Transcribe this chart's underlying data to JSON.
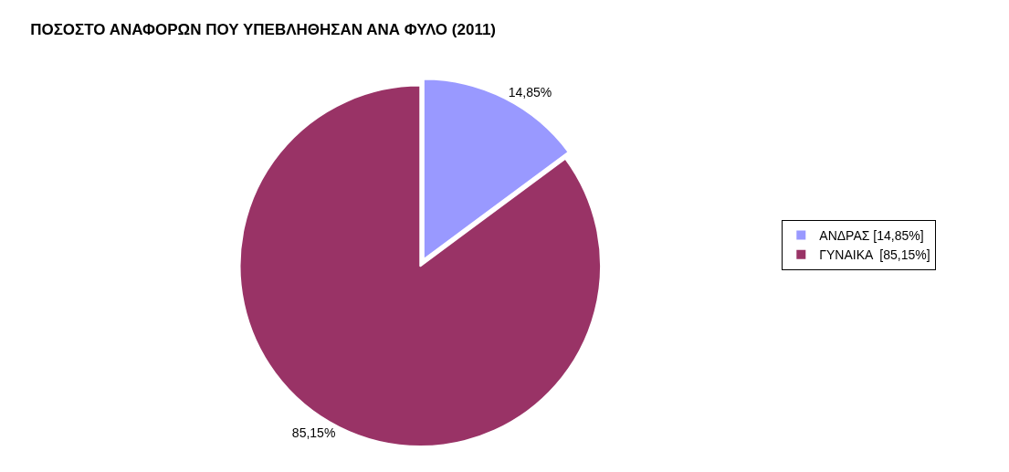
{
  "chart_data": {
    "type": "pie",
    "title": "ΠΟΣΟΣΤΟ ΑΝΑΦΟΡΩΝ ΠΟΥ ΥΠΕΒΛΗΘΗΣΑΝ ΑΝΑ ΦΥΛΟ (2011)",
    "categories": [
      "ΑΝΔΡΑΣ [14,85%]",
      "ΓΥΝΑΙΚΑ  [85,15%]"
    ],
    "values": [
      14.85,
      85.15
    ],
    "value_labels": [
      "14,85%",
      "85,15%"
    ],
    "colors": [
      "#9999ff",
      "#993366"
    ],
    "legend": "right"
  }
}
